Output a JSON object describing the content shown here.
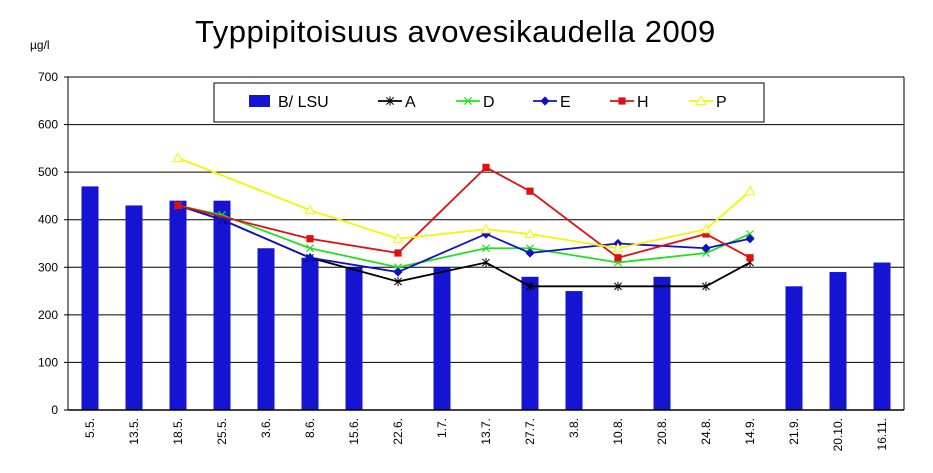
{
  "chart_data": {
    "type": "bar",
    "title": "Typpipitoisuus avovesikaudella  2009",
    "unit_label": "µg/l",
    "ylim": [
      0,
      700
    ],
    "yticks": [
      0,
      100,
      200,
      300,
      400,
      500,
      600,
      700
    ],
    "grid": true,
    "legend_position": "top-center",
    "categories": [
      "5.5.",
      "13.5.",
      "18.5.",
      "25.5.",
      "3.6.",
      "8.6.",
      "15.6.",
      "22.6.",
      "1.7.",
      "13.7.",
      "27.7.",
      "3.8.",
      "10.8.",
      "20.8.",
      "24.8.",
      "14.9.",
      "21.9.",
      "20.10.",
      "16.11."
    ],
    "series": [
      {
        "name": "B/ LSU",
        "kind": "bar",
        "color": "#1414d2",
        "marker": "none",
        "values": [
          470,
          430,
          440,
          440,
          340,
          320,
          300,
          null,
          300,
          null,
          280,
          250,
          null,
          280,
          null,
          null,
          260,
          290,
          310
        ]
      },
      {
        "name": "A",
        "kind": "line",
        "color": "#000000",
        "marker": "star",
        "values": [
          null,
          null,
          430,
          400,
          null,
          320,
          null,
          270,
          null,
          310,
          260,
          null,
          260,
          null,
          260,
          310,
          null,
          null,
          null
        ]
      },
      {
        "name": "D",
        "kind": "line",
        "color": "#20e020",
        "marker": "x",
        "values": [
          null,
          null,
          430,
          410,
          null,
          340,
          null,
          300,
          null,
          340,
          340,
          null,
          310,
          null,
          330,
          370,
          null,
          null,
          null
        ]
      },
      {
        "name": "E",
        "kind": "line",
        "color": "#1010c8",
        "marker": "diamond",
        "values": [
          null,
          null,
          430,
          400,
          null,
          320,
          null,
          290,
          null,
          370,
          330,
          null,
          350,
          null,
          340,
          360,
          null,
          null,
          null
        ]
      },
      {
        "name": "H",
        "kind": "line",
        "color": "#e01010",
        "marker": "square",
        "values": [
          null,
          null,
          430,
          null,
          null,
          360,
          null,
          330,
          null,
          510,
          460,
          null,
          320,
          null,
          370,
          320,
          null,
          null,
          null
        ]
      },
      {
        "name": "P",
        "kind": "line",
        "color": "#f5f500",
        "marker": "triangle",
        "values": [
          null,
          null,
          530,
          null,
          null,
          420,
          null,
          360,
          null,
          380,
          370,
          null,
          340,
          null,
          380,
          460,
          null,
          null,
          null
        ]
      }
    ]
  }
}
